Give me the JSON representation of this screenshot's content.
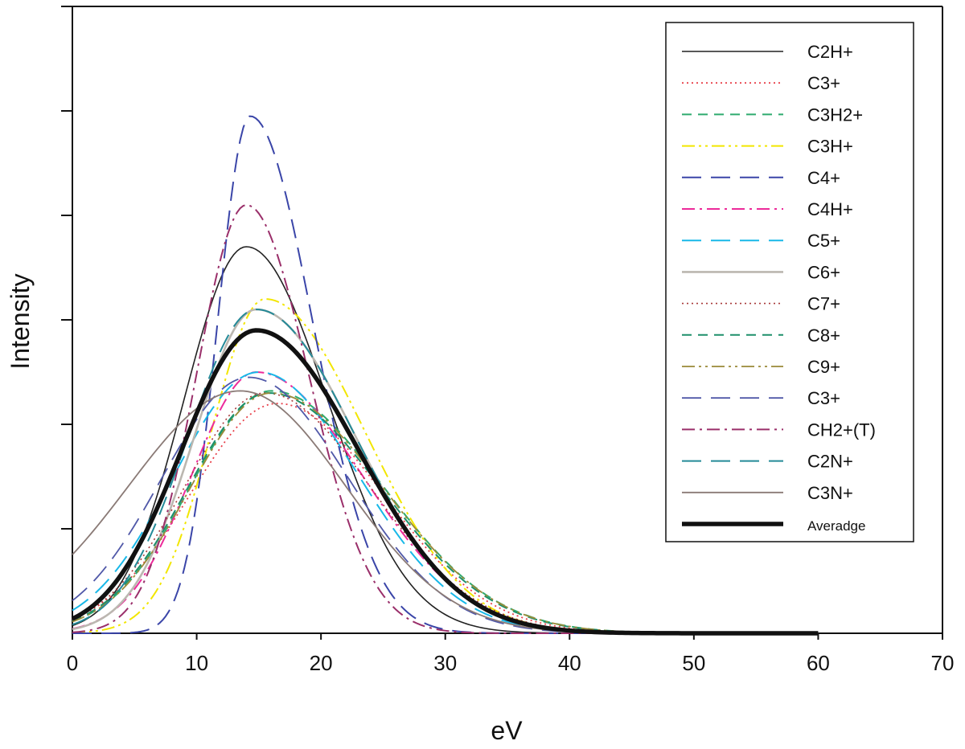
{
  "chart_data": {
    "type": "line",
    "title": "",
    "xlabel": "eV",
    "ylabel": "Intensity",
    "xlim": [
      0,
      70
    ],
    "ylim": [
      0,
      6
    ],
    "x_ticks": [
      0,
      10,
      20,
      30,
      40,
      50,
      60,
      70
    ],
    "x_tick_labels": [
      "0",
      "10",
      "20",
      "30",
      "40",
      "50",
      "60",
      "70"
    ],
    "y_ticks": [
      1,
      2,
      3,
      4,
      5,
      6
    ],
    "y_tick_labels": [],
    "grid": false,
    "legend_position": "top-right",
    "x_range_of_curves": [
      0,
      60
    ],
    "series": [
      {
        "name": "C2H+",
        "color": "#222222",
        "dash": "solid",
        "width": 1.6,
        "peak_x": 14.0,
        "peak_y": 3.7,
        "sigma_left": 5.0,
        "sigma_right": 6.5
      },
      {
        "name": "C3+",
        "color": "#e8404a",
        "dash": "dotted",
        "width": 1.8,
        "peak_x": 16.5,
        "peak_y": 2.2,
        "sigma_left": 7.0,
        "sigma_right": 8.5
      },
      {
        "name": "C3H2+",
        "color": "#2eaa6e",
        "dash": "dashed",
        "width": 2.0,
        "peak_x": 16.0,
        "peak_y": 2.32,
        "sigma_left": 6.5,
        "sigma_right": 9.0
      },
      {
        "name": "C3H+",
        "color": "#f2e600",
        "dash": "dashdotdot",
        "width": 2.0,
        "peak_x": 15.5,
        "peak_y": 3.2,
        "sigma_left": 4.3,
        "sigma_right": 8.0
      },
      {
        "name": "C4+",
        "color": "#3a45a8",
        "dash": "longdash",
        "width": 2.0,
        "peak_x": 14.3,
        "peak_y": 4.95,
        "sigma_left": 2.6,
        "sigma_right": 5.0
      },
      {
        "name": "C4H+",
        "color": "#ec2a9a",
        "dash": "dashdot",
        "width": 2.0,
        "peak_x": 14.8,
        "peak_y": 2.5,
        "sigma_left": 5.2,
        "sigma_right": 8.5
      },
      {
        "name": "C5+",
        "color": "#18b8e8",
        "dash": "longdash",
        "width": 2.0,
        "peak_x": 15.0,
        "peak_y": 2.5,
        "sigma_left": 6.8,
        "sigma_right": 8.0
      },
      {
        "name": "C6+",
        "color": "#bbb7b0",
        "dash": "solid",
        "width": 2.6,
        "peak_x": 14.8,
        "peak_y": 3.1,
        "sigma_left": 5.0,
        "sigma_right": 8.0
      },
      {
        "name": "C7+",
        "color": "#a83a3a",
        "dash": "dotted",
        "width": 1.6,
        "peak_x": 15.5,
        "peak_y": 2.3,
        "sigma_left": 6.5,
        "sigma_right": 8.5
      },
      {
        "name": "C8+",
        "color": "#1e8f6a",
        "dash": "dashed",
        "width": 2.0,
        "peak_x": 15.8,
        "peak_y": 2.3,
        "sigma_left": 6.5,
        "sigma_right": 9.0
      },
      {
        "name": "C9+",
        "color": "#9a8a38",
        "dash": "dashdotdot",
        "width": 1.8,
        "peak_x": 16.0,
        "peak_y": 2.3,
        "sigma_left": 6.5,
        "sigma_right": 9.0
      },
      {
        "name": "C3+",
        "color": "#5058a8",
        "dash": "longdash",
        "width": 1.8,
        "peak_x": 14.2,
        "peak_y": 2.45,
        "sigma_left": 7.0,
        "sigma_right": 8.0
      },
      {
        "name": "CH2+(T)",
        "color": "#9a2f6a",
        "dash": "dashdot",
        "width": 2.0,
        "peak_x": 14.0,
        "peak_y": 4.1,
        "sigma_left": 4.0,
        "sigma_right": 5.0
      },
      {
        "name": "C2N+",
        "color": "#248a98",
        "dash": "longdash",
        "width": 2.0,
        "peak_x": 14.8,
        "peak_y": 3.1,
        "sigma_left": 5.5,
        "sigma_right": 8.0
      },
      {
        "name": "C3N+",
        "color": "#8a7a76",
        "dash": "solid",
        "width": 1.8,
        "peak_x": 13.5,
        "peak_y": 2.32,
        "sigma_left": 9.0,
        "sigma_right": 8.5
      },
      {
        "name": "Averadge",
        "color": "#111111",
        "dash": "solid",
        "width": 5.5,
        "peak_x": 14.8,
        "peak_y": 2.9,
        "sigma_left": 6.0,
        "sigma_right": 8.2
      }
    ]
  }
}
